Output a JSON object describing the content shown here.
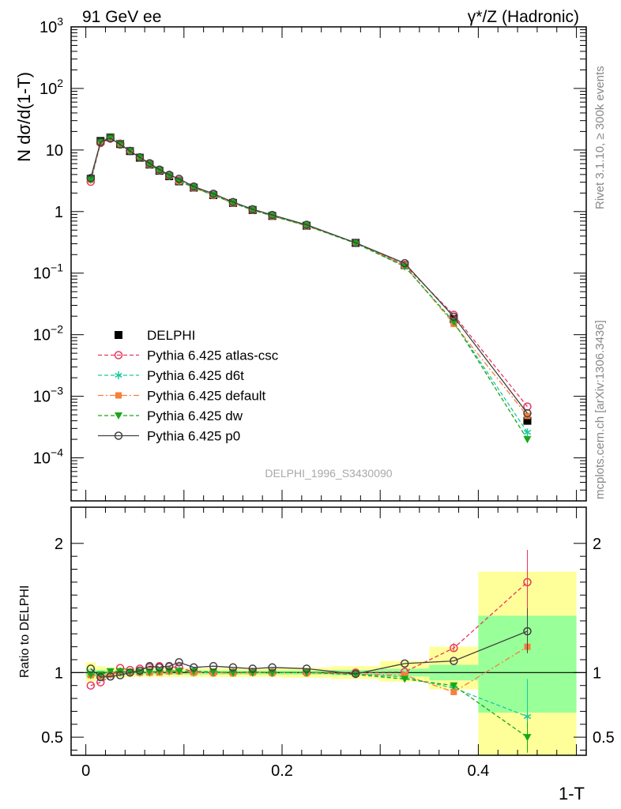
{
  "header": {
    "left": "91 GeV ee",
    "right": "γ*/Z (Hadronic)"
  },
  "side_labels": {
    "rivet": "Rivet 3.1.10, ≥ 300k events",
    "mcplots": "mcplots.cern.ch [arXiv:1306.3436]"
  },
  "analysis_label": "DELPHI_1996_S3430090",
  "colors": {
    "DELPHI": "#000000",
    "atlas-csc": "#e8365e",
    "d6t": "#19c9a0",
    "default": "#f5803a",
    "dw": "#17a817",
    "p0": "#404040",
    "band_yellow": "#ffff99",
    "band_green": "#99ff99"
  },
  "chart_data": [
    {
      "type": "line",
      "title": "",
      "ylabel": "N dσ/d(1-T)",
      "xlabel": "",
      "yscale": "log",
      "xlim": [
        -0.015,
        0.51
      ],
      "ylim": [
        2e-05,
        1000
      ],
      "y_ticks": [
        "10^-4",
        "10^-3",
        "10^-2",
        "10^-1",
        "1",
        "10",
        "10^2",
        "10^3"
      ],
      "legend_position": "middle-left",
      "x": [
        0.005,
        0.015,
        0.025,
        0.035,
        0.045,
        0.055,
        0.065,
        0.075,
        0.085,
        0.095,
        0.11,
        0.13,
        0.15,
        0.17,
        0.19,
        0.225,
        0.275,
        0.325,
        0.375,
        0.45
      ],
      "series": [
        {
          "name": "DELPHI",
          "marker": "square",
          "values": [
            3.4,
            14.0,
            16.0,
            12.5,
            9.6,
            7.5,
            5.8,
            4.6,
            3.75,
            3.1,
            2.45,
            1.85,
            1.38,
            1.06,
            0.85,
            0.59,
            0.31,
            0.135,
            0.018,
            0.0004
          ]
        },
        {
          "name": "Pythia 6.425 atlas-csc",
          "marker": "open-circle",
          "dash": "5,3",
          "values": [
            3.05,
            13.0,
            15.3,
            12.7,
            9.7,
            7.6,
            5.9,
            4.7,
            3.85,
            3.2,
            2.45,
            1.85,
            1.38,
            1.07,
            0.85,
            0.59,
            0.31,
            0.136,
            0.021,
            0.00068
          ]
        },
        {
          "name": "Pythia 6.425 d6t",
          "marker": "star",
          "dash": "5,3",
          "values": [
            3.3,
            13.5,
            15.8,
            12.5,
            9.6,
            7.5,
            5.8,
            4.65,
            3.8,
            3.15,
            2.45,
            1.85,
            1.38,
            1.06,
            0.85,
            0.59,
            0.31,
            0.13,
            0.016,
            0.00026
          ]
        },
        {
          "name": "Pythia 6.425 default",
          "marker": "filled-square",
          "dash": "7,3,2,3",
          "values": [
            3.3,
            13.6,
            15.8,
            12.5,
            9.6,
            7.5,
            5.8,
            4.6,
            3.8,
            3.1,
            2.45,
            1.85,
            1.37,
            1.06,
            0.85,
            0.59,
            0.31,
            0.133,
            0.015,
            0.00048
          ]
        },
        {
          "name": "Pythia 6.425 dw",
          "marker": "triangle-down",
          "dash": "5,3",
          "values": [
            3.3,
            13.7,
            16.2,
            12.6,
            9.7,
            7.55,
            5.85,
            4.65,
            3.8,
            3.15,
            2.47,
            1.86,
            1.38,
            1.06,
            0.85,
            0.59,
            0.305,
            0.128,
            0.0162,
            0.0002
          ]
        },
        {
          "name": "Pythia 6.425 p0",
          "marker": "open-circle",
          "dash": "",
          "values": [
            3.5,
            13.5,
            15.5,
            12.3,
            9.6,
            7.6,
            6.1,
            4.8,
            3.95,
            3.4,
            2.55,
            1.95,
            1.43,
            1.09,
            0.88,
            0.61,
            0.31,
            0.145,
            0.0196,
            0.00053
          ]
        }
      ]
    },
    {
      "type": "line",
      "title": "",
      "ylabel": "Ratio to DELPHI",
      "xlabel": "1-T",
      "xlim": [
        -0.015,
        0.51
      ],
      "ylim": [
        0.36,
        2.28
      ],
      "x_ticks": [
        "0",
        "0.2",
        "0.4"
      ],
      "y_ticks": [
        "0.5",
        "1",
        "2"
      ],
      "x": [
        0.005,
        0.015,
        0.025,
        0.035,
        0.045,
        0.055,
        0.065,
        0.075,
        0.085,
        0.095,
        0.11,
        0.13,
        0.15,
        0.17,
        0.19,
        0.225,
        0.275,
        0.325,
        0.375,
        0.45
      ],
      "bins": [
        [
          0.0,
          0.01
        ],
        [
          0.01,
          0.02
        ],
        [
          0.02,
          0.03
        ],
        [
          0.03,
          0.04
        ],
        [
          0.04,
          0.05
        ],
        [
          0.05,
          0.06
        ],
        [
          0.06,
          0.07
        ],
        [
          0.07,
          0.08
        ],
        [
          0.08,
          0.09
        ],
        [
          0.09,
          0.1
        ],
        [
          0.1,
          0.12
        ],
        [
          0.12,
          0.14
        ],
        [
          0.14,
          0.16
        ],
        [
          0.16,
          0.18
        ],
        [
          0.18,
          0.2
        ],
        [
          0.2,
          0.25
        ],
        [
          0.25,
          0.3
        ],
        [
          0.3,
          0.35
        ],
        [
          0.35,
          0.4
        ],
        [
          0.4,
          0.5
        ]
      ],
      "band_green": [
        [
          0.97,
          1.03
        ],
        [
          0.98,
          1.02
        ],
        [
          0.985,
          1.015
        ],
        [
          0.985,
          1.015
        ],
        [
          0.985,
          1.015
        ],
        [
          0.985,
          1.015
        ],
        [
          0.985,
          1.015
        ],
        [
          0.985,
          1.015
        ],
        [
          0.985,
          1.015
        ],
        [
          0.985,
          1.015
        ],
        [
          0.985,
          1.015
        ],
        [
          0.985,
          1.015
        ],
        [
          0.985,
          1.015
        ],
        [
          0.985,
          1.015
        ],
        [
          0.985,
          1.015
        ],
        [
          0.985,
          1.015
        ],
        [
          0.98,
          1.02
        ],
        [
          0.97,
          1.03
        ],
        [
          0.94,
          1.06
        ],
        [
          0.69,
          1.44
        ]
      ],
      "band_yellow": [
        [
          0.93,
          1.08
        ],
        [
          0.95,
          1.05
        ],
        [
          0.96,
          1.04
        ],
        [
          0.96,
          1.04
        ],
        [
          0.965,
          1.035
        ],
        [
          0.965,
          1.035
        ],
        [
          0.965,
          1.035
        ],
        [
          0.965,
          1.035
        ],
        [
          0.965,
          1.035
        ],
        [
          0.965,
          1.035
        ],
        [
          0.965,
          1.035
        ],
        [
          0.965,
          1.035
        ],
        [
          0.965,
          1.035
        ],
        [
          0.965,
          1.035
        ],
        [
          0.965,
          1.035
        ],
        [
          0.96,
          1.04
        ],
        [
          0.95,
          1.05
        ],
        [
          0.93,
          1.09
        ],
        [
          0.87,
          1.2
        ],
        [
          0.35,
          1.78
        ]
      ],
      "series": [
        {
          "name": "Pythia 6.425 atlas-csc",
          "marker": "open-circle",
          "dash": "5,3",
          "values": [
            0.9,
            0.925,
            0.97,
            1.035,
            1.02,
            1.03,
            1.04,
            1.05,
            1.045,
            1.04,
            1.005,
            1.0,
            1.0,
            1.005,
            1.0,
            1.0,
            1.0,
            1.005,
            1.19,
            1.7
          ]
        },
        {
          "name": "Pythia 6.425 d6t",
          "marker": "star",
          "dash": "5,3",
          "values": [
            0.98,
            0.97,
            0.985,
            1.0,
            1.0,
            1.0,
            1.0,
            1.01,
            1.01,
            1.015,
            1.0,
            1.0,
            1.0,
            1.0,
            1.0,
            1.0,
            0.99,
            0.965,
            0.88,
            0.66
          ]
        },
        {
          "name": "Pythia 6.425 default",
          "marker": "filled-square",
          "dash": "7,3,2,3",
          "values": [
            0.98,
            0.975,
            0.985,
            1.0,
            1.0,
            1.0,
            1.0,
            1.0,
            1.01,
            1.01,
            1.0,
            1.0,
            0.995,
            1.0,
            1.0,
            1.0,
            0.99,
            0.98,
            0.85,
            1.2
          ]
        },
        {
          "name": "Pythia 6.425 dw",
          "marker": "triangle-down",
          "dash": "5,3",
          "values": [
            0.985,
            0.985,
            1.01,
            1.01,
            1.005,
            1.005,
            1.005,
            1.01,
            1.015,
            1.01,
            1.01,
            1.005,
            1.0,
            1.0,
            1.0,
            1.0,
            0.985,
            0.95,
            0.9,
            0.5
          ]
        },
        {
          "name": "Pythia 6.425 p0",
          "marker": "open-circle",
          "dash": "",
          "values": [
            1.03,
            0.965,
            0.97,
            0.98,
            1.0,
            1.015,
            1.05,
            1.04,
            1.05,
            1.08,
            1.04,
            1.05,
            1.04,
            1.03,
            1.04,
            1.03,
            0.99,
            1.07,
            1.09,
            1.32
          ]
        }
      ]
    }
  ]
}
